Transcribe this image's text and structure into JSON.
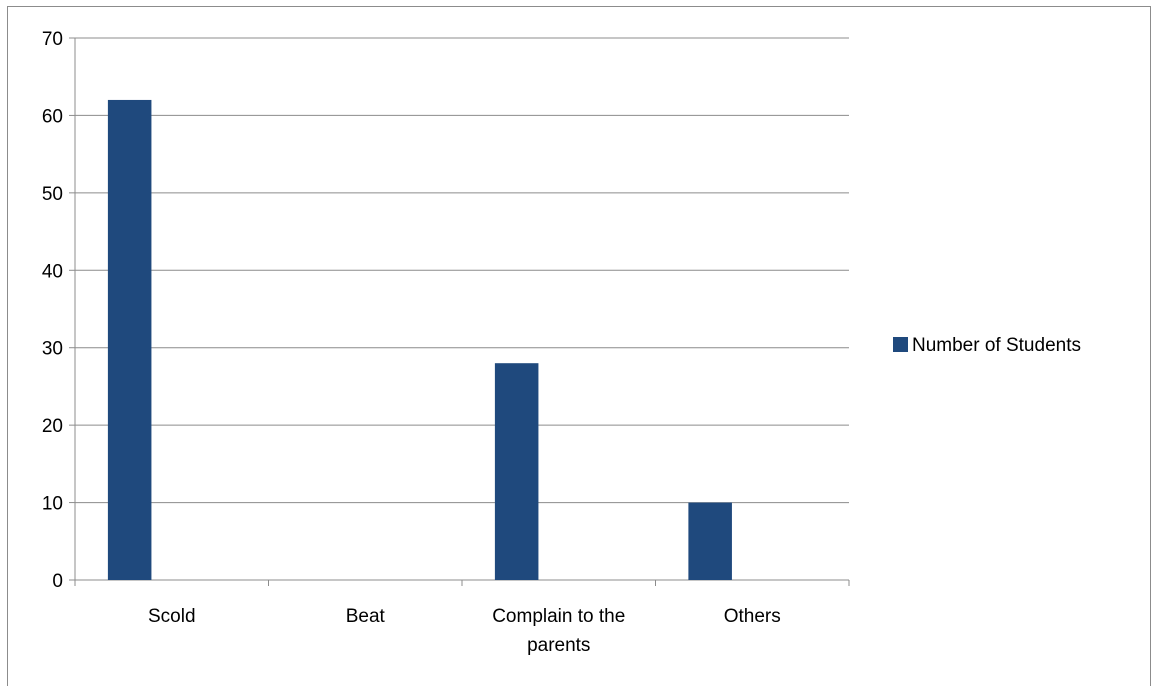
{
  "chart_data": {
    "type": "bar",
    "title": "",
    "xlabel": "",
    "ylabel": "",
    "categories": [
      "Scold",
      "Beat",
      "Complain to the parents",
      "Others"
    ],
    "category_label_lines": [
      [
        "Scold"
      ],
      [
        "Beat"
      ],
      [
        "Complain to the",
        "parents"
      ],
      [
        "Others"
      ]
    ],
    "series": [
      {
        "name": "Number of Students",
        "color": "#1f497d",
        "values": [
          62,
          0,
          28,
          10
        ]
      }
    ],
    "ylim": [
      0,
      70
    ],
    "yticks": [
      0,
      10,
      20,
      30,
      40,
      50,
      60,
      70
    ],
    "grid": true,
    "legend_position": "right"
  }
}
